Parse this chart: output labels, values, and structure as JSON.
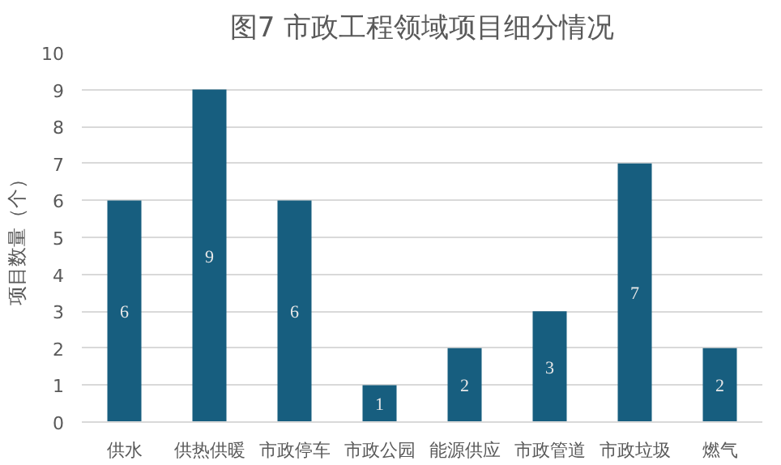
{
  "chart_data": {
    "type": "bar",
    "title": "图7 市政工程领域项目细分情况",
    "ylabel": "项目数量（个）",
    "categories": [
      "供水",
      "供热供暖",
      "市政停车",
      "市政公园",
      "能源供应",
      "市政管道",
      "市政垃圾",
      "燃气"
    ],
    "values": [
      6,
      9,
      6,
      1,
      2,
      3,
      7,
      2
    ],
    "color": "#175e7f",
    "data_labels": true,
    "ylim": [
      0,
      10
    ],
    "yticks": [
      0,
      1,
      2,
      3,
      4,
      5,
      6,
      7,
      8,
      9,
      10
    ],
    "grid": "y"
  }
}
